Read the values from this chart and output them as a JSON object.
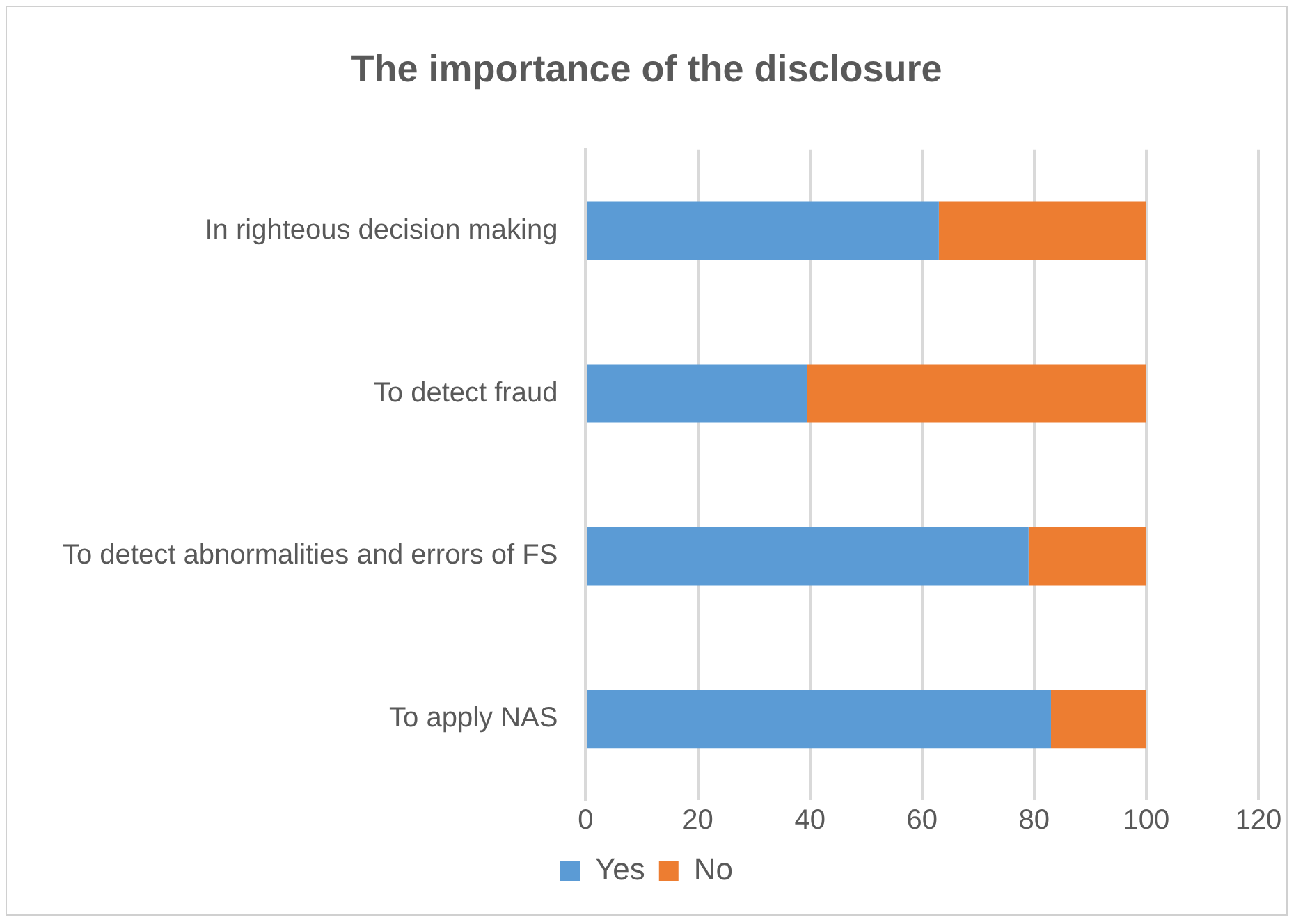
{
  "chart_data": {
    "type": "bar",
    "orientation": "horizontal",
    "stacked": true,
    "title": "The importance of the disclosure",
    "categories": [
      "In righteous decision making",
      "To detect fraud",
      "To detect abnormalities and errors of FS",
      "To apply NAS"
    ],
    "series": [
      {
        "name": "Yes",
        "color": "#5b9bd5",
        "values": [
          63,
          39.5,
          79,
          83
        ]
      },
      {
        "name": "No",
        "color": "#ed7d31",
        "values": [
          37,
          60.5,
          21,
          17
        ]
      }
    ],
    "xlim": [
      0,
      120
    ],
    "xticks": [
      0,
      20,
      40,
      60,
      80,
      100,
      120
    ],
    "grid": "x",
    "legend": "bottom"
  }
}
